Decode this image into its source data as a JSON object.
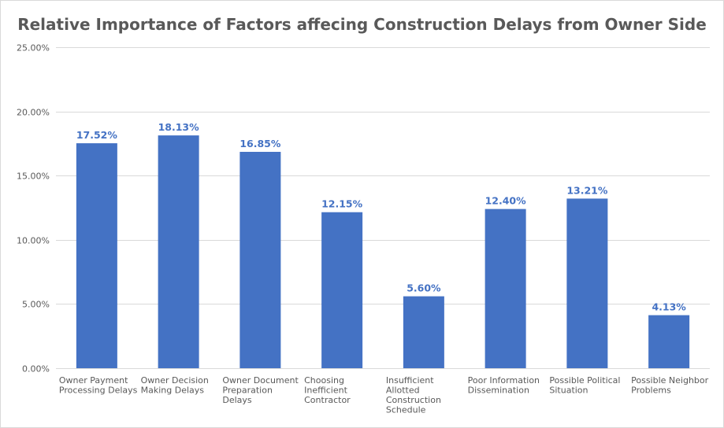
{
  "chart_data": {
    "type": "bar",
    "title": "Relative Importance of Factors affecing Construction Delays from Owner Side",
    "xlabel": "",
    "ylabel": "",
    "categories": [
      [
        "Owner Payment",
        "Processing Delays"
      ],
      [
        "Owner Decision",
        "Making Delays"
      ],
      [
        "Owner Document",
        "Preparation",
        "Delays"
      ],
      [
        "Choosing",
        "Inefficient",
        "Contractor"
      ],
      [
        "Insufficient",
        "Allotted",
        "Construction",
        "Schedule"
      ],
      [
        "Poor Information",
        "Dissemination"
      ],
      [
        "Possible Political",
        "Situation"
      ],
      [
        "Possible Neighbor",
        "Problems"
      ]
    ],
    "values": [
      17.52,
      18.13,
      16.85,
      12.15,
      5.6,
      12.4,
      13.21,
      4.13
    ],
    "data_labels": [
      "17.52%",
      "18.13%",
      "16.85%",
      "12.15%",
      "5.60%",
      "12.40%",
      "13.21%",
      "4.13%"
    ],
    "ylim": [
      0,
      25
    ],
    "yticks": [
      0,
      5,
      10,
      15,
      20,
      25
    ],
    "ytick_labels": [
      "0.00%",
      "5.00%",
      "10.00%",
      "15.00%",
      "20.00%",
      "25.00%"
    ],
    "grid": true,
    "legend": "none",
    "bar_color": "#4472c4",
    "grid_color": "#d9d9d9",
    "text_color": "#595959"
  }
}
